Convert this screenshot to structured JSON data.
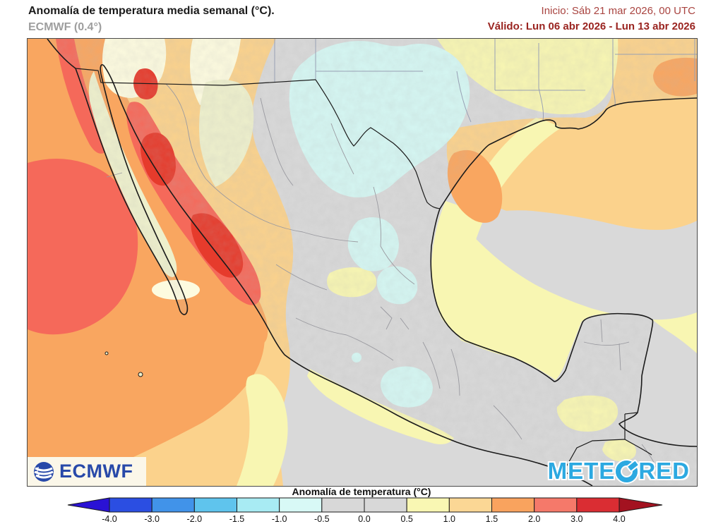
{
  "header": {
    "title": "Anomalía de temperatura media semanal (°C).",
    "model": "ECMWF (0.4°)",
    "init_label": "Inicio: Sáb 21 mar 2026, 00 UTC",
    "valid_label": "Válido: Lun 06 abr 2026 - Lun 13 abr 2026"
  },
  "map": {
    "region": "Mexico, southern United States, Gulf of Mexico and Central America",
    "variable": "weekly mean temperature anomaly",
    "ecmwf_logo_text": "ECMWF",
    "meteored_logo_left": "METE",
    "meteored_logo_right": "RED"
  },
  "legend": {
    "title": "Anomalía de temperatura (°C)",
    "tick_labels": [
      "-4.0",
      "-3.0",
      "-2.0",
      "-1.5",
      "-1.0",
      "-0.5",
      "0.0",
      "0.5",
      "1.0",
      "1.5",
      "2.0",
      "3.0",
      "4.0"
    ],
    "segment_colors": [
      "#2b4ee2",
      "#4193e9",
      "#5fc4ed",
      "#a8ebf3",
      "#d8f9f6",
      "#d8d8d8",
      "#d8d8d8",
      "#f9f7b3",
      "#fbd795",
      "#f9a35e",
      "#f5796a",
      "#da2d33"
    ],
    "arrow_left_color": "#2a12d5",
    "arrow_right_color": "#a31220"
  },
  "palette": {
    "gray": "#d9d9d9",
    "peach": "#fbd28c",
    "orange": "#f9a660",
    "salmon": "#f5695a",
    "red": "#e63b2c",
    "yellow": "#f8f6b2",
    "cream": "#fdfbdf",
    "pale": "#eef0cc",
    "cyan": "#d5f7f3",
    "coastline": "#1b1b1b",
    "state_line_us": "#98a0b4",
    "state_line_mx": "#9a9aa0",
    "ecmwf_blue": "#2849a9",
    "meteored_blue": "#2ca9e1"
  }
}
